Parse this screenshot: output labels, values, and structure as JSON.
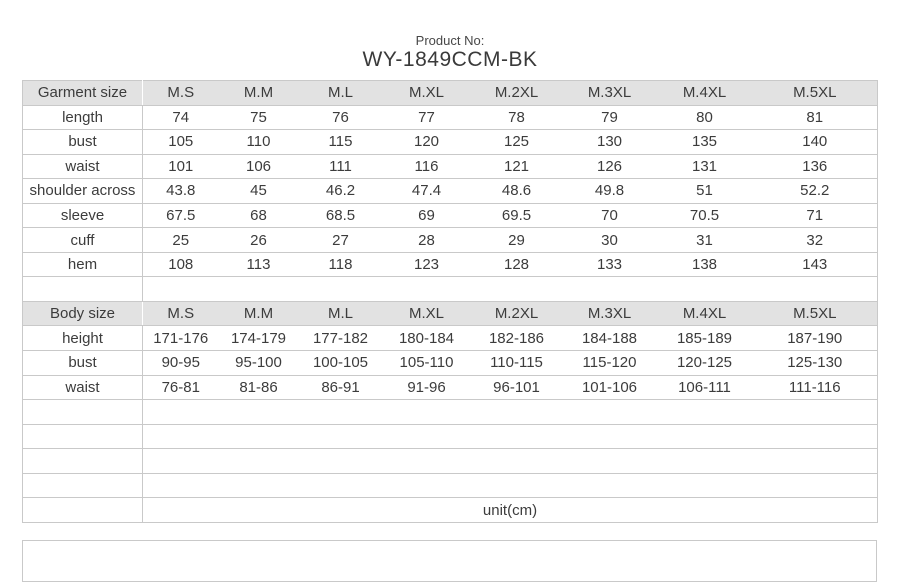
{
  "title": {
    "label": "Product No:",
    "product_no": "WY-1849CCM-BK"
  },
  "unit_note": "unit(cm)",
  "size_table": {
    "columns": [
      "M.S",
      "M.M",
      "M.L",
      "M.XL",
      "M.2XL",
      "M.3XL",
      "M.4XL",
      "M.5XL"
    ],
    "sections": [
      {
        "header": "Garment size",
        "rows": [
          {
            "label": "length",
            "values": [
              "74",
              "75",
              "76",
              "77",
              "78",
              "79",
              "80",
              "81"
            ]
          },
          {
            "label": "bust",
            "values": [
              "105",
              "110",
              "115",
              "120",
              "125",
              "130",
              "135",
              "140"
            ]
          },
          {
            "label": "waist",
            "values": [
              "101",
              "106",
              "111",
              "116",
              "121",
              "126",
              "131",
              "136"
            ]
          },
          {
            "label": "shoulder across",
            "values": [
              "43.8",
              "45",
              "46.2",
              "47.4",
              "48.6",
              "49.8",
              "51",
              "52.2"
            ]
          },
          {
            "label": "sleeve",
            "values": [
              "67.5",
              "68",
              "68.5",
              "69",
              "69.5",
              "70",
              "70.5",
              "71"
            ]
          },
          {
            "label": "cuff",
            "values": [
              "25",
              "26",
              "27",
              "28",
              "29",
              "30",
              "31",
              "32"
            ]
          },
          {
            "label": "hem",
            "values": [
              "108",
              "113",
              "118",
              "123",
              "128",
              "133",
              "138",
              "143"
            ]
          }
        ]
      },
      {
        "spacer": 1
      },
      {
        "header": "Body size",
        "rows": [
          {
            "label": "height",
            "values": [
              "171-176",
              "174-179",
              "177-182",
              "180-184",
              "182-186",
              "184-188",
              "185-189",
              "187-190"
            ]
          },
          {
            "label": "bust",
            "values": [
              "90-95",
              "95-100",
              "100-105",
              "105-110",
              "110-115",
              "115-120",
              "120-125",
              "125-130"
            ]
          },
          {
            "label": "waist",
            "values": [
              "76-81",
              "81-86",
              "86-91",
              "91-96",
              "96-101",
              "101-106",
              "106-111",
              "111-116"
            ]
          }
        ]
      },
      {
        "spacer": 4
      },
      {
        "unit": "unit(cm)"
      }
    ]
  },
  "colors": {
    "header_bg": "#e2e2e2",
    "border": "#c9c9c9",
    "text": "#3c3c3c"
  }
}
